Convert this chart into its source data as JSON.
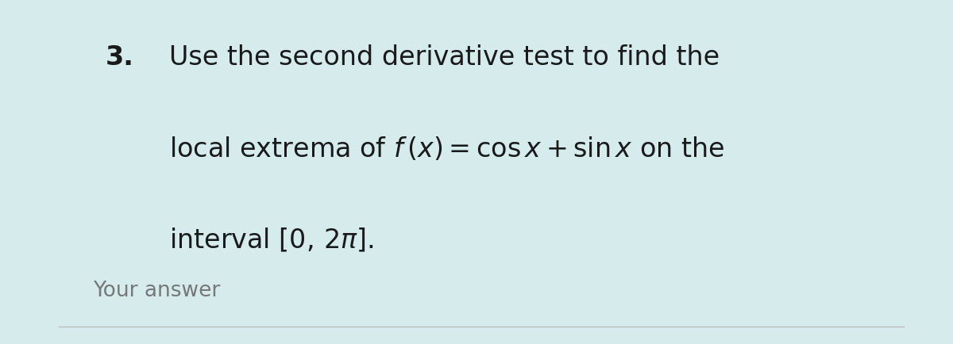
{
  "background_color": "#ffffff",
  "outer_background_color": "#d6ecec",
  "right_border_color": "#6a8080",
  "number": "3.",
  "line1": "Use the second derivative test to find the",
  "line2": "local extrema of $f\\,(x) = \\cos x + \\sin x$ on the",
  "line3": "interval $[0,\\, 2\\pi]$.",
  "your_answer_text": "Your answer",
  "number_fontsize": 24,
  "text_fontsize": 24,
  "your_answer_fontsize": 19,
  "text_color": "#1a1a1a",
  "your_answer_color": "#777777",
  "line_color": "#bbbbbb",
  "left_bar_width": 0.062,
  "right_bar_width": 0.052
}
